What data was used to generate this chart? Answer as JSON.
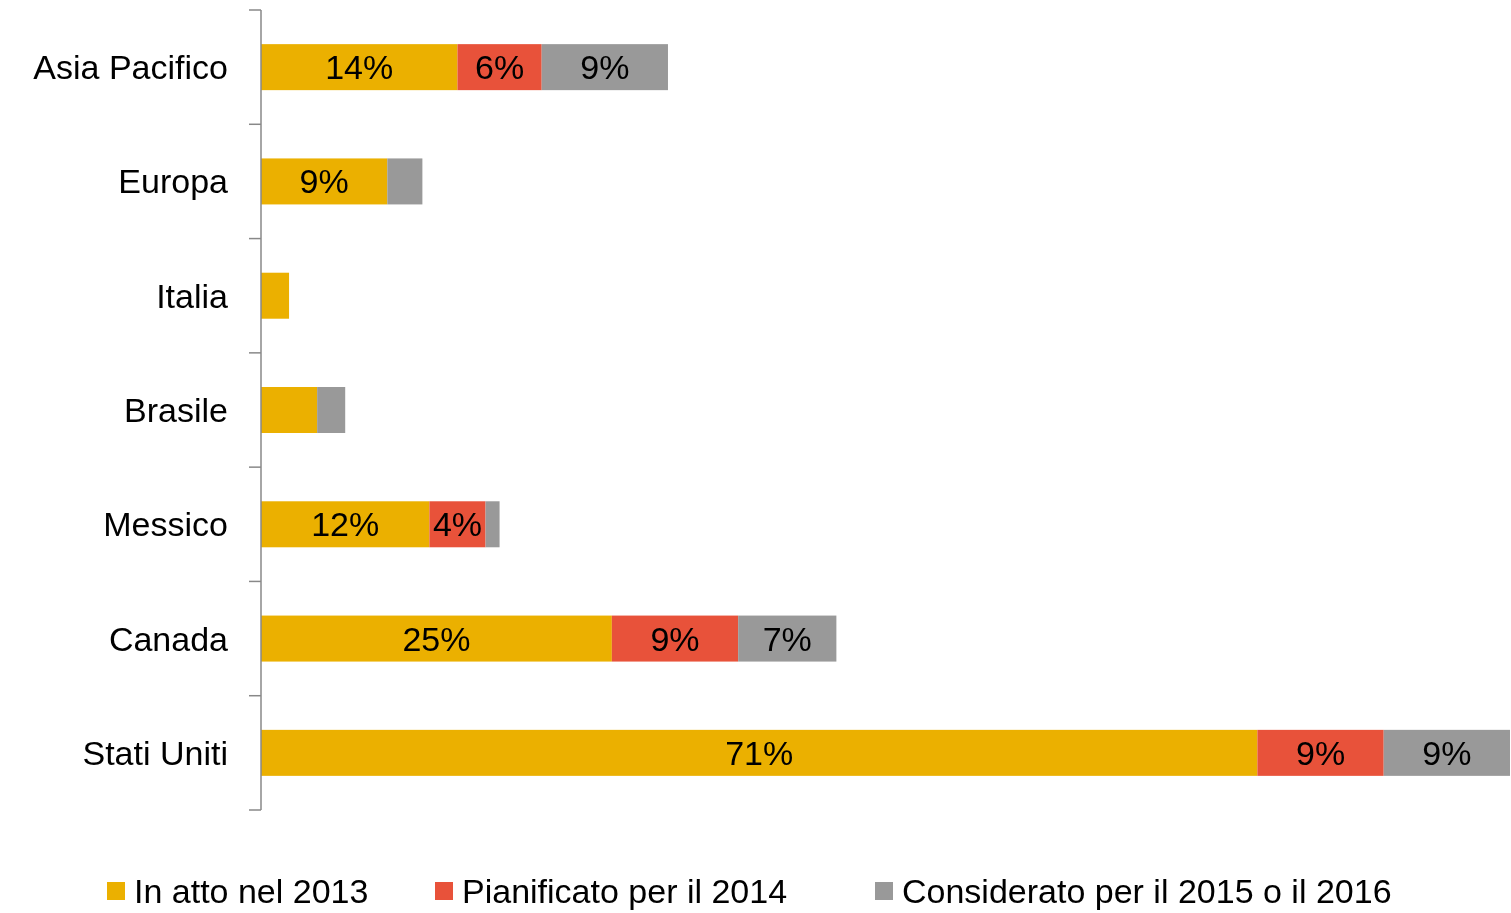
{
  "chart_data": {
    "type": "bar",
    "orientation": "horizontal",
    "stacked": true,
    "legend": "bottom",
    "xlim": [
      0,
      89
    ],
    "tick_labels": "y",
    "categories": [
      "Asia Pacifico",
      "Europa",
      "Italia",
      "Brasile",
      "Messico",
      "Canada",
      "Stati Uniti"
    ],
    "series": [
      {
        "name": "In atto nel 2013",
        "color": "#ebb000",
        "values": [
          14,
          9,
          2,
          4,
          12,
          25,
          71
        ],
        "value_labels": [
          "14%",
          "9%",
          null,
          null,
          "12%",
          "25%",
          "71%"
        ]
      },
      {
        "name": "Pianificato per il 2014",
        "color": "#e8523a",
        "values": [
          6,
          null,
          null,
          null,
          4,
          9,
          9
        ],
        "value_labels": [
          "6%",
          null,
          null,
          null,
          "4%",
          "9%",
          "9%"
        ]
      },
      {
        "name": "Considerato per il 2015 o il 2016",
        "color": "#999999",
        "values": [
          9,
          2.5,
          null,
          2,
          1,
          7,
          9
        ],
        "value_labels": [
          "9%",
          null,
          null,
          null,
          null,
          "7%",
          "9%"
        ]
      }
    ]
  }
}
